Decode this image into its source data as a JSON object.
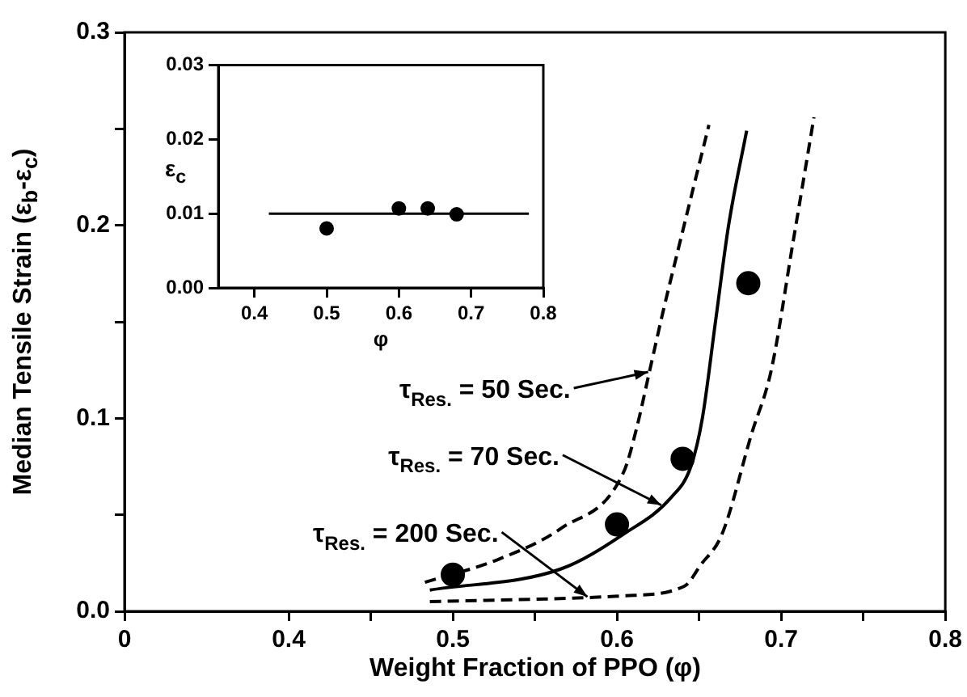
{
  "chart_data": [
    {
      "type": "line",
      "xlabel": "Weight Fraction of PPO  (φ)",
      "ylabel": "Median Tensile Strain  (ε$_{b}$-ε$_{c}$)",
      "xlim": [
        0.3,
        0.8
      ],
      "xticks": [
        {
          "value": 0.3,
          "label": "0"
        },
        0.4,
        {
          "value": 0.45,
          "label": null
        },
        0.5,
        {
          "value": 0.55,
          "label": null
        },
        0.6,
        {
          "value": 0.65,
          "label": null
        },
        0.7,
        {
          "value": 0.75,
          "label": null
        },
        0.8
      ],
      "ylim": [
        0,
        0.3
      ],
      "yticks": [
        {
          "value": 0,
          "label": "0.0"
        },
        {
          "value": 0.05,
          "label": null
        },
        0.1,
        {
          "value": 0.15,
          "label": null
        },
        0.2,
        {
          "value": 0.25,
          "label": null
        },
        0.3
      ],
      "grid": false,
      "legend": false,
      "series": [
        {
          "type": "scatter",
          "color": "#000000",
          "marker": "circle",
          "x": [
            0.5,
            0.6,
            0.64,
            0.68
          ],
          "values": [
            0.019,
            0.045,
            0.079,
            0.17
          ]
        },
        {
          "color": "#000000",
          "line_style": "dashed",
          "marker": "none",
          "x": [
            0.483,
            0.528,
            0.566,
            0.604,
            0.612,
            0.62,
            0.628,
            0.638,
            0.656
          ],
          "values": [
            0.015,
            0.027,
            0.043,
            0.072,
            0.095,
            0.125,
            0.155,
            0.19,
            0.252
          ]
        },
        {
          "color": "#000000",
          "line_style": "solid",
          "marker": "none",
          "x": [
            0.486,
            0.566,
            0.604,
            0.633,
            0.645,
            0.652,
            0.66,
            0.668,
            0.679
          ],
          "values": [
            0.011,
            0.022,
            0.04,
            0.059,
            0.075,
            0.1,
            0.15,
            0.2,
            0.249
          ]
        },
        {
          "color": "#000000",
          "line_style": "dashed",
          "marker": "none",
          "x": [
            0.486,
            0.604,
            0.641,
            0.651,
            0.664,
            0.682,
            0.694,
            0.707,
            0.72
          ],
          "values": [
            0.005,
            0.008,
            0.013,
            0.024,
            0.04,
            0.092,
            0.125,
            0.19,
            0.256
          ]
        }
      ],
      "annotations": [
        {
          "text": "τ$_{Res.}$ = 50 Sec.",
          "x": 0.619,
          "y": 0.124
        },
        {
          "text": "τ$_{Res.}$ = 70 Sec.",
          "x": 0.627,
          "y": 0.055
        },
        {
          "text": "τ$_{Res.}$ = 200 Sec.",
          "x": 0.582,
          "y": 0.0075
        }
      ]
    },
    {
      "type": "scatter",
      "xlabel": "φ",
      "ylabel": "ε$_{c}$",
      "xlim": [
        0.35,
        0.8
      ],
      "xticks": [
        0.4,
        0.5,
        0.6,
        0.7,
        0.8
      ],
      "ylim": [
        0,
        0.03
      ],
      "yticks": [
        {
          "value": 0,
          "label": "0.00"
        },
        0.01,
        0.02,
        0.03
      ],
      "grid": false,
      "legend": false,
      "series": [
        {
          "color": "#000000",
          "marker": "circle",
          "x": [
            0.5,
            0.6,
            0.64,
            0.68
          ],
          "values": [
            0.008,
            0.0107,
            0.0107,
            0.0099
          ]
        },
        {
          "type": "line",
          "color": "#000000",
          "line_style": "solid",
          "marker": "none",
          "x": [
            0.42,
            0.78
          ],
          "values": [
            0.01,
            0.01
          ]
        }
      ]
    }
  ]
}
